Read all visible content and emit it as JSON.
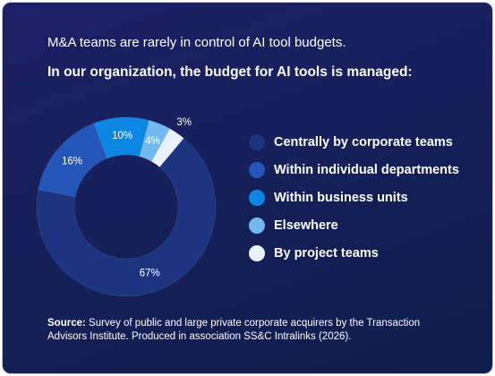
{
  "chart_data": {
    "type": "donut",
    "title": "M&A teams are rarely in control of AI tool budgets.",
    "subtitle": "In our organization, the budget for AI tools is managed:",
    "categories": [
      "Centrally by corporate teams",
      "Within individual departments",
      "Within business units",
      "Elsewhere",
      "By project teams"
    ],
    "values": [
      67,
      16,
      10,
      4,
      3
    ],
    "value_labels": [
      "67%",
      "16%",
      "10%",
      "4%",
      "3%"
    ],
    "colors": [
      "#1d3480",
      "#2356b8",
      "#0b86e3",
      "#72b9ef",
      "#e8f1fc"
    ],
    "source_label": "Source:",
    "source": "Survey of public and large private corporate acquirers by the Transaction Advisors Institute. Produced in association SS&C Intralinks (2026)."
  }
}
